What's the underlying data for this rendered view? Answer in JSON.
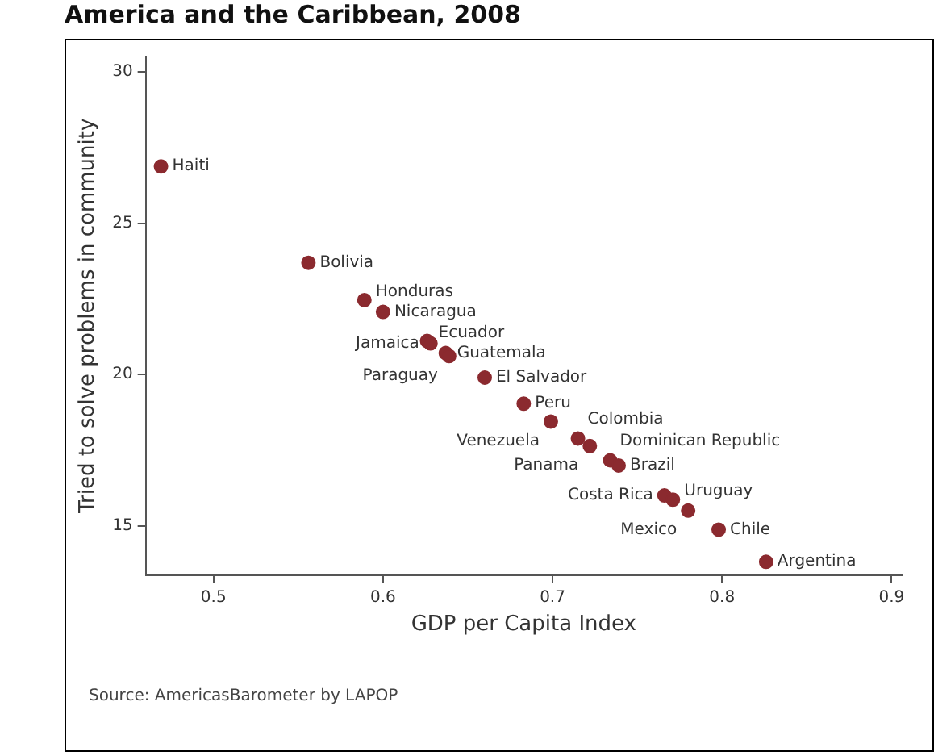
{
  "chart_data": {
    "type": "scatter",
    "title": "America and the Caribbean, 2008",
    "xlabel": "GDP per Capita Index",
    "ylabel": "Tried to solve problems in community",
    "x": [
      0.469,
      0.556,
      0.589,
      0.6,
      0.626,
      0.628,
      0.637,
      0.639,
      0.66,
      0.683,
      0.699,
      0.715,
      0.722,
      0.734,
      0.739,
      0.766,
      0.771,
      0.78,
      0.798,
      0.826
    ],
    "series": [
      {
        "color": "#8b2a2f",
        "values": [
          26.87,
          23.69,
          22.46,
          22.07,
          21.11,
          21.03,
          20.71,
          20.61,
          19.9,
          19.04,
          18.45,
          17.89,
          17.64,
          17.17,
          17.0,
          16.01,
          15.87,
          15.51,
          14.88,
          13.82
        ]
      }
    ],
    "xlim": [
      0.46,
      0.906
    ],
    "xticks": [
      0.5,
      0.6,
      0.7,
      0.8,
      0.9
    ],
    "ylim": [
      13.38,
      30.5
    ],
    "yticks": [
      15,
      20,
      25,
      30
    ],
    "grid": false,
    "legend": false,
    "marker": "circle",
    "annotations": [
      {
        "text": "Haiti",
        "x": 0.469,
        "y": 26.87
      },
      {
        "text": "Bolivia",
        "x": 0.556,
        "y": 23.69
      },
      {
        "text": "Honduras",
        "x": 0.589,
        "y": 22.46
      },
      {
        "text": "Nicaragua",
        "x": 0.6,
        "y": 22.07
      },
      {
        "text": "Ecuador",
        "x": 0.626,
        "y": 21.11
      },
      {
        "text": "Jamaica",
        "x": 0.628,
        "y": 21.03
      },
      {
        "text": "Guatemala",
        "x": 0.637,
        "y": 20.71
      },
      {
        "text": "Paraguay",
        "x": 0.639,
        "y": 20.61
      },
      {
        "text": "El Salvador",
        "x": 0.66,
        "y": 19.9
      },
      {
        "text": "Peru",
        "x": 0.683,
        "y": 19.04
      },
      {
        "text": "Venezuela",
        "x": 0.699,
        "y": 18.45
      },
      {
        "text": "Colombia",
        "x": 0.715,
        "y": 17.89
      },
      {
        "text": "Panama",
        "x": 0.722,
        "y": 17.64
      },
      {
        "text": "Dominican Republic",
        "x": 0.734,
        "y": 17.17
      },
      {
        "text": "Brazil",
        "x": 0.739,
        "y": 17.0
      },
      {
        "text": "Costa Rica",
        "x": 0.766,
        "y": 16.01
      },
      {
        "text": "Uruguay",
        "x": 0.771,
        "y": 15.87
      },
      {
        "text": "Mexico",
        "x": 0.78,
        "y": 15.51
      },
      {
        "text": "Chile",
        "x": 0.798,
        "y": 14.88
      },
      {
        "text": "Argentina",
        "x": 0.826,
        "y": 13.82
      },
      "Source: AmericasBarometer by LAPOP"
    ]
  }
}
